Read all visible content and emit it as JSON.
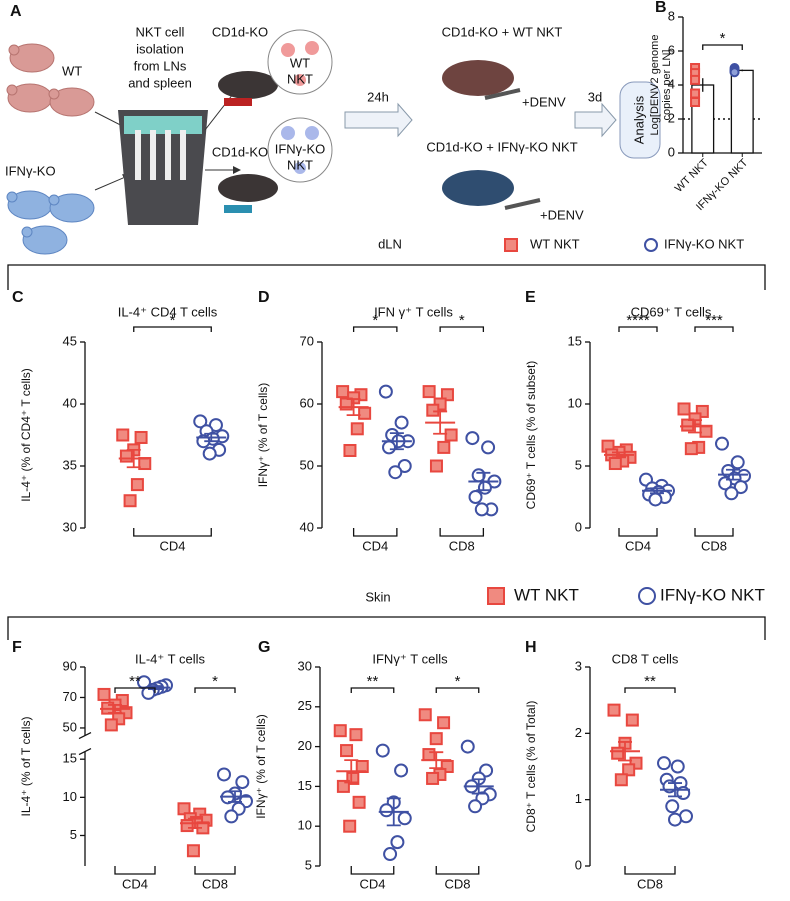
{
  "schematic": {
    "panel": "A",
    "donor_labels": [
      "WT",
      "IFNγ-KO"
    ],
    "isolation": [
      "NKT cell",
      "isolation",
      "from LNs",
      "and spleen"
    ],
    "recipients": [
      {
        "label": "CD1d-KO",
        "cells": [
          "WT",
          "NKT"
        ]
      },
      {
        "label": "CD1d-KO",
        "cells": [
          "IFNγ-KO",
          "NKT"
        ]
      }
    ],
    "wait": "24h",
    "groups": [
      {
        "label": "CD1d-KO + WT NKT",
        "treatment": "+DENV"
      },
      {
        "label": "CD1d-KO + IFNγ-KO NKT",
        "treatment": "+DENV"
      }
    ],
    "time": "3d",
    "endpoint": "Analysis"
  },
  "sections": [
    {
      "title": "dLN"
    },
    {
      "title": "Skin"
    }
  ],
  "chart_data": [
    {
      "type": "bar",
      "panel": "B",
      "ylabel": [
        "Log[DENV2 genome",
        "copies per LN]"
      ],
      "categories": [
        "WT NKT",
        "IFNγ-KO NKT"
      ],
      "values": [
        4.0,
        4.86
      ],
      "sem": [
        0.4,
        0.05
      ],
      "points": [
        [
          5.0,
          4.7,
          4.3,
          3.5,
          3.0
        ],
        [
          5.0,
          4.9,
          4.85,
          4.8,
          4.75
        ]
      ],
      "colors": [
        "#e8473f",
        "#3f51a3"
      ],
      "fills": [
        "#f08a80",
        "#8fa0d8"
      ],
      "markers": [
        "square",
        "circle"
      ],
      "ylim": [
        0,
        8
      ],
      "yticks": [
        0,
        2,
        4,
        6,
        8
      ],
      "reference_line": 2,
      "significance": [
        {
          "label": "*",
          "categories": [
            0,
            1
          ]
        }
      ]
    },
    {
      "type": "dotplot",
      "panel": "C",
      "title": "IL-4⁺ CD4 T cells",
      "ylabel": "IL-4⁺ (% of CD4⁺ T cells)",
      "categories": [
        "CD4"
      ],
      "series": [
        {
          "name": "WT NKT",
          "color": "#e8473f",
          "fill": "#f08a80",
          "marker": "square",
          "values": [
            [
              37.5,
              37.3,
              36.3,
              35.8,
              35.2,
              33.5,
              32.2
            ]
          ],
          "mean": [
            35.6
          ],
          "sem": [
            0.7
          ]
        },
        {
          "name": "IFNγ-KO NKT",
          "color": "#3f51a3",
          "fill": "#ffffff",
          "marker": "circle",
          "values": [
            [
              38.6,
              38.3,
              37.8,
              37.4,
              37.2,
              37.0,
              36.3,
              36.0
            ]
          ],
          "mean": [
            37.3
          ],
          "sem": [
            0.3
          ]
        }
      ],
      "ylim": [
        30,
        45
      ],
      "yticks": [
        30,
        35,
        40,
        45
      ],
      "significance": [
        {
          "label": "*",
          "category": 0
        }
      ]
    },
    {
      "type": "dotplot",
      "panel": "D",
      "title": "IFN γ⁺ T cells",
      "ylabel": "IFNγ⁺ (% of T cells)",
      "categories": [
        "CD4",
        "CD8"
      ],
      "series": [
        {
          "name": "WT NKT",
          "color": "#e8473f",
          "fill": "#f08a80",
          "marker": "square",
          "values": [
            [
              62,
              61.5,
              61,
              60,
              58.5,
              56,
              52.5
            ],
            [
              62,
              61.5,
              60,
              59,
              55,
              53,
              50
            ]
          ],
          "mean": [
            59.5,
            57
          ],
          "sem": [
            1.3,
            1.8
          ]
        },
        {
          "name": "IFNγ-KO NKT",
          "color": "#3f51a3",
          "fill": "#ffffff",
          "marker": "circle",
          "values": [
            [
              62,
              57,
              55,
              54,
              54,
              53,
              50,
              49
            ],
            [
              54.5,
              53,
              48.5,
              47.5,
              46.5,
              45,
              43,
              43
            ]
          ],
          "mean": [
            54,
            47.5
          ],
          "sem": [
            1.3,
            1.4
          ]
        }
      ],
      "ylim": [
        40,
        70
      ],
      "yticks": [
        40,
        50,
        60,
        70
      ],
      "significance": [
        {
          "label": "*",
          "category": 0
        },
        {
          "label": "*",
          "category": 1
        }
      ]
    },
    {
      "type": "dotplot",
      "panel": "E",
      "title": "CD69⁺ T cells",
      "ylabel": "CD69⁺ T cells (% of subset)",
      "categories": [
        "CD4",
        "CD8"
      ],
      "series": [
        {
          "name": "WT NKT",
          "color": "#e8473f",
          "fill": "#f08a80",
          "marker": "square",
          "values": [
            [
              6.6,
              6.3,
              6.1,
              5.9,
              5.7,
              5.4,
              5.2
            ],
            [
              9.6,
              9.4,
              8.8,
              8.3,
              7.8,
              6.5,
              6.4
            ]
          ],
          "mean": [
            5.9,
            8.2
          ],
          "sem": [
            0.2,
            0.5
          ]
        },
        {
          "name": "IFNγ-KO NKT",
          "color": "#3f51a3",
          "fill": "#ffffff",
          "marker": "circle",
          "values": [
            [
              3.9,
              3.4,
              3.2,
              3.0,
              2.9,
              2.7,
              2.5,
              2.3
            ],
            [
              6.8,
              5.3,
              4.6,
              4.2,
              4.0,
              3.6,
              3.3,
              2.8
            ]
          ],
          "mean": [
            3.0,
            4.3
          ],
          "sem": [
            0.2,
            0.4
          ]
        }
      ],
      "ylim": [
        0,
        15
      ],
      "yticks": [
        0,
        5,
        10,
        15
      ],
      "significance": [
        {
          "label": "****",
          "category": 0
        },
        {
          "label": "***",
          "category": 1
        }
      ]
    },
    {
      "type": "dotplot",
      "panel": "F",
      "title": "IL-4⁺ T cells",
      "ylabel": "IL-4⁺ (% of T cells)",
      "categories": [
        "CD4",
        "CD8"
      ],
      "series": [
        {
          "name": "WT NKT",
          "color": "#e8473f",
          "fill": "#f08a80",
          "marker": "square",
          "values": [
            [
              72,
              68,
              65,
              63,
              60,
              56,
              52
            ],
            [
              8.5,
              7.8,
              7.2,
              7.0,
              6.7,
              6.3,
              6.0,
              3.0
            ]
          ],
          "mean": [
            62.5,
            6.6
          ],
          "sem": [
            2.6,
            0.6
          ]
        },
        {
          "name": "IFNγ-KO NKT",
          "color": "#3f51a3",
          "fill": "#ffffff",
          "marker": "circle",
          "values": [
            [
              80,
              78,
              77,
              76,
              75,
              73
            ],
            [
              13,
              12,
              10.5,
              10,
              9.5,
              8.5,
              7.5
            ]
          ],
          "mean": [
            76.5,
            10.1
          ],
          "sem": [
            1.0,
            0.7
          ]
        }
      ],
      "ylim": [
        1,
        90
      ],
      "ybreak": [
        16,
        45
      ],
      "yticks": [
        5,
        10,
        15,
        50,
        70,
        90
      ],
      "significance": [
        {
          "label": "**",
          "category": 0
        },
        {
          "label": "*",
          "category": 1
        }
      ]
    },
    {
      "type": "dotplot",
      "panel": "G",
      "title": "IFNγ⁺ T cells",
      "ylabel": "IFNγ⁺ (% of T cells)",
      "categories": [
        "CD4",
        "CD8"
      ],
      "series": [
        {
          "name": "WT NKT",
          "color": "#e8473f",
          "fill": "#f08a80",
          "marker": "square",
          "values": [
            [
              22,
              21.5,
              19.5,
              17.5,
              16,
              15,
              13,
              10
            ],
            [
              24,
              23,
              21,
              19,
              17.5,
              16.5,
              16
            ]
          ],
          "mean": [
            16.9,
            18.3
          ],
          "sem": [
            1.4,
            1.0
          ]
        },
        {
          "name": "IFNγ-KO NKT",
          "color": "#3f51a3",
          "fill": "#ffffff",
          "marker": "circle",
          "values": [
            [
              19.5,
              17,
              13,
              12,
              11,
              8,
              6.5
            ],
            [
              20,
              17,
              16,
              15,
              14,
              13.5,
              12.5
            ]
          ],
          "mean": [
            11.8,
            15
          ],
          "sem": [
            1.7,
            0.9
          ]
        }
      ],
      "ylim": [
        5,
        30
      ],
      "yticks": [
        5,
        10,
        15,
        20,
        25,
        30
      ],
      "significance": [
        {
          "label": "**",
          "category": 0
        },
        {
          "label": "*",
          "category": 1
        }
      ]
    },
    {
      "type": "dotplot",
      "panel": "H",
      "title": "CD8 T cells",
      "ylabel": "CD8⁺ T cells (% of Total)",
      "categories": [
        "CD8"
      ],
      "series": [
        {
          "name": "WT NKT",
          "color": "#e8473f",
          "fill": "#f08a80",
          "marker": "square",
          "values": [
            [
              2.35,
              2.2,
              1.85,
              1.7,
              1.55,
              1.45,
              1.3
            ]
          ],
          "mean": [
            1.73
          ],
          "sem": [
            0.14
          ]
        },
        {
          "name": "IFNγ-KO NKT",
          "color": "#3f51a3",
          "fill": "#ffffff",
          "marker": "circle",
          "values": [
            [
              1.55,
              1.5,
              1.3,
              1.25,
              1.2,
              1.1,
              0.9,
              0.75,
              0.7
            ]
          ],
          "mean": [
            1.15
          ],
          "sem": [
            0.1
          ]
        }
      ],
      "ylim": [
        0,
        3
      ],
      "yticks": [
        0,
        1,
        2,
        3
      ],
      "significance": [
        {
          "label": "**",
          "category": 0
        }
      ]
    }
  ]
}
